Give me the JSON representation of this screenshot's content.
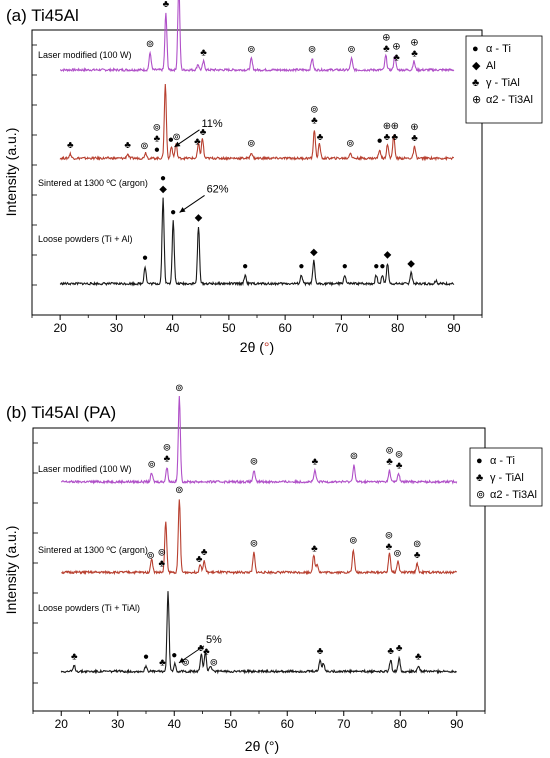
{
  "colors": {
    "laser": "#b050c8",
    "sintered": "#b84030",
    "loose": "#1a1a1a"
  },
  "chart_data": [
    {
      "type": "line",
      "title": "(a) Ti45Al",
      "xlabel": "2θ (°)",
      "ylabel": "Intensity (a.u.)",
      "xlim": [
        15,
        95
      ],
      "xticks": [
        20,
        30,
        40,
        50,
        60,
        70,
        80,
        90
      ],
      "legend": {
        "placement": "top-right",
        "entries": [
          {
            "symbol": "●",
            "label": "α - Ti"
          },
          {
            "symbol": "◆",
            "label": "Al"
          },
          {
            "symbol": "♣",
            "label": "γ - TiAl"
          },
          {
            "symbol": "⊕",
            "label": "α2 - Ti3Al"
          }
        ]
      },
      "series": [
        {
          "name": "Laser modified (100 W)",
          "color_key": "laser",
          "baseline": 0.86,
          "peaks": [
            [
              36.0,
              0.06
            ],
            [
              38.8,
              0.2
            ],
            [
              41.1,
              0.3
            ],
            [
              44.5,
              0.02
            ],
            [
              45.5,
              0.03
            ],
            [
              54.0,
              0.04
            ],
            [
              64.8,
              0.04
            ],
            [
              71.8,
              0.04
            ],
            [
              77.9,
              0.05
            ],
            [
              79.5,
              0.05
            ],
            [
              82.9,
              0.03
            ]
          ],
          "markers": [
            {
              "x": 36.0,
              "syms": [
                "⊚"
              ]
            },
            {
              "x": 38.8,
              "syms": [
                "♣",
                "⊚"
              ]
            },
            {
              "x": 41.1,
              "syms": [
                "⊚"
              ]
            },
            {
              "x": 45.5,
              "syms": [
                "♣"
              ]
            },
            {
              "x": 54.0,
              "syms": [
                "⊚"
              ]
            },
            {
              "x": 64.8,
              "syms": [
                "⊚"
              ]
            },
            {
              "x": 71.8,
              "syms": [
                "⊚"
              ]
            },
            {
              "x": 78.0,
              "syms": [
                "♣",
                "⊕"
              ]
            },
            {
              "x": 79.8,
              "syms": [
                "♣",
                "⊕"
              ]
            },
            {
              "x": 83.0,
              "syms": [
                "♣",
                "⊕"
              ]
            }
          ]
        },
        {
          "name": "Sintered at 1300 ºC (argon)",
          "color_key": "sintered",
          "baseline": 0.55,
          "peaks": [
            [
              21.8,
              0.015
            ],
            [
              32.0,
              0.015
            ],
            [
              35.2,
              0.02
            ],
            [
              38.7,
              0.26
            ],
            [
              39.8,
              0.04
            ],
            [
              40.6,
              0.05
            ],
            [
              44.6,
              0.05
            ],
            [
              45.3,
              0.07
            ],
            [
              54.0,
              0.02
            ],
            [
              65.2,
              0.1
            ],
            [
              66.1,
              0.05
            ],
            [
              71.6,
              0.02
            ],
            [
              76.8,
              0.03
            ],
            [
              78.2,
              0.05
            ],
            [
              79.3,
              0.08
            ],
            [
              83.0,
              0.04
            ]
          ],
          "markers": [
            {
              "x": 21.8,
              "syms": [
                "♣"
              ]
            },
            {
              "x": 32.0,
              "syms": [
                "♣"
              ]
            },
            {
              "x": 35.0,
              "syms": [
                "⊚"
              ]
            },
            {
              "x": 37.2,
              "syms": [
                "●",
                "♣",
                "⊚"
              ]
            },
            {
              "x": 39.7,
              "syms": [
                "●"
              ]
            },
            {
              "x": 40.7,
              "syms": [
                "⊚"
              ]
            },
            {
              "x": 44.4,
              "syms": [
                "♣"
              ]
            },
            {
              "x": 45.4,
              "syms": [
                "♣"
              ]
            },
            {
              "x": 54.0,
              "syms": [
                "⊚"
              ]
            },
            {
              "x": 65.2,
              "syms": [
                "♣",
                "⊚"
              ]
            },
            {
              "x": 66.2,
              "syms": [
                "♣"
              ]
            },
            {
              "x": 71.6,
              "syms": [
                "⊚"
              ]
            },
            {
              "x": 76.8,
              "syms": [
                "●"
              ]
            },
            {
              "x": 78.1,
              "syms": [
                "♣",
                "⊕"
              ]
            },
            {
              "x": 79.5,
              "syms": [
                "♣",
                "⊕"
              ]
            },
            {
              "x": 83.0,
              "syms": [
                "♣",
                "⊕"
              ]
            }
          ],
          "annotation": {
            "text": "11%",
            "arrow_to": [
              39.8,
              0.59
            ]
          }
        },
        {
          "name": "Loose powders (Ti + Al)",
          "color_key": "loose",
          "baseline": 0.11,
          "peaks": [
            [
              35.1,
              0.06
            ],
            [
              38.3,
              0.3
            ],
            [
              40.1,
              0.22
            ],
            [
              44.6,
              0.2
            ],
            [
              52.9,
              0.03
            ],
            [
              62.9,
              0.03
            ],
            [
              65.1,
              0.08
            ],
            [
              70.6,
              0.03
            ],
            [
              76.2,
              0.03
            ],
            [
              77.3,
              0.03
            ],
            [
              78.2,
              0.07
            ],
            [
              82.4,
              0.04
            ],
            [
              86.8,
              0.01
            ]
          ],
          "markers": [
            {
              "x": 35.1,
              "syms": [
                "●"
              ]
            },
            {
              "x": 38.3,
              "syms": [
                "◆",
                "●"
              ]
            },
            {
              "x": 40.1,
              "syms": [
                "●"
              ]
            },
            {
              "x": 44.6,
              "syms": [
                "◆"
              ]
            },
            {
              "x": 52.9,
              "syms": [
                "●"
              ]
            },
            {
              "x": 62.9,
              "syms": [
                "●"
              ]
            },
            {
              "x": 65.1,
              "syms": [
                "◆"
              ]
            },
            {
              "x": 70.6,
              "syms": [
                "●"
              ]
            },
            {
              "x": 76.2,
              "syms": [
                "●"
              ]
            },
            {
              "x": 77.3,
              "syms": [
                "●"
              ]
            },
            {
              "x": 78.2,
              "syms": [
                "◆"
              ]
            },
            {
              "x": 82.4,
              "syms": [
                "◆"
              ]
            }
          ],
          "annotation": {
            "text": "62%",
            "arrow_to": [
              40.7,
              0.36
            ]
          }
        }
      ]
    },
    {
      "type": "line",
      "title": "(b) Ti45Al (PA)",
      "xlabel": "2θ (°)",
      "ylabel": "Intensity (a.u.)",
      "xlim": [
        15,
        95
      ],
      "xticks": [
        20,
        30,
        40,
        50,
        60,
        70,
        80,
        90
      ],
      "legend": {
        "placement": "top-right",
        "entries": [
          {
            "symbol": "●",
            "label": "α - Ti"
          },
          {
            "symbol": "♣",
            "label": "γ - TiAl"
          },
          {
            "symbol": "⊚",
            "label": "α2 - Ti3Al"
          }
        ]
      },
      "series": [
        {
          "name": "Laser modified (100 W)",
          "color_key": "laser",
          "baseline": 0.81,
          "peaks": [
            [
              36.0,
              0.03
            ],
            [
              38.7,
              0.05
            ],
            [
              40.9,
              0.3
            ],
            [
              54.1,
              0.04
            ],
            [
              64.9,
              0.04
            ],
            [
              71.8,
              0.06
            ],
            [
              78.1,
              0.04
            ],
            [
              79.7,
              0.03
            ]
          ],
          "markers": [
            {
              "x": 36.0,
              "syms": [
                "⊚"
              ]
            },
            {
              "x": 38.7,
              "syms": [
                "♣",
                "⊚"
              ]
            },
            {
              "x": 40.9,
              "syms": [
                "⊚"
              ]
            },
            {
              "x": 54.1,
              "syms": [
                "⊚"
              ]
            },
            {
              "x": 64.9,
              "syms": [
                "♣"
              ]
            },
            {
              "x": 71.8,
              "syms": [
                "⊚"
              ]
            },
            {
              "x": 78.1,
              "syms": [
                "♣",
                "⊚"
              ]
            },
            {
              "x": 79.8,
              "syms": [
                "♣",
                "⊚"
              ]
            }
          ]
        },
        {
          "name": "Sintered at 1300 ºC (argon)",
          "color_key": "sintered",
          "baseline": 0.49,
          "peaks": [
            [
              36.0,
              0.05
            ],
            [
              38.5,
              0.18
            ],
            [
              40.9,
              0.26
            ],
            [
              44.6,
              0.03
            ],
            [
              45.3,
              0.04
            ],
            [
              54.1,
              0.07
            ],
            [
              64.7,
              0.06
            ],
            [
              65.3,
              0.03
            ],
            [
              71.7,
              0.08
            ],
            [
              78.1,
              0.07
            ],
            [
              79.6,
              0.04
            ],
            [
              83.0,
              0.03
            ]
          ],
          "markers": [
            {
              "x": 35.8,
              "syms": [
                "⊚"
              ]
            },
            {
              "x": 37.8,
              "syms": [
                "♣",
                "⊚"
              ]
            },
            {
              "x": 40.9,
              "syms": [
                "⊚"
              ]
            },
            {
              "x": 44.4,
              "syms": [
                "♣"
              ]
            },
            {
              "x": 45.3,
              "syms": [
                "♣"
              ]
            },
            {
              "x": 54.1,
              "syms": [
                "⊚"
              ]
            },
            {
              "x": 64.8,
              "syms": [
                "♣"
              ]
            },
            {
              "x": 71.7,
              "syms": [
                "⊚"
              ]
            },
            {
              "x": 78.0,
              "syms": [
                "♣",
                "⊚"
              ]
            },
            {
              "x": 79.5,
              "syms": [
                "⊚"
              ]
            },
            {
              "x": 83.0,
              "syms": [
                "♣",
                "⊚"
              ]
            }
          ]
        },
        {
          "name": "Loose powders (Ti + TiAl)",
          "color_key": "loose",
          "baseline": 0.14,
          "peaks": [
            [
              22.3,
              0.02
            ],
            [
              35.0,
              0.02
            ],
            [
              38.9,
              0.28
            ],
            [
              40.1,
              0.03
            ],
            [
              44.8,
              0.06
            ],
            [
              45.5,
              0.07
            ],
            [
              46.4,
              0.02
            ],
            [
              65.8,
              0.04
            ],
            [
              66.4,
              0.03
            ],
            [
              78.3,
              0.04
            ],
            [
              79.8,
              0.05
            ],
            [
              83.2,
              0.02
            ]
          ],
          "markers": [
            {
              "x": 22.3,
              "syms": [
                "♣"
              ]
            },
            {
              "x": 35.0,
              "syms": [
                "●"
              ]
            },
            {
              "x": 37.9,
              "syms": [
                "♣"
              ]
            },
            {
              "x": 40.0,
              "syms": [
                "●"
              ]
            },
            {
              "x": 42.0,
              "syms": [
                "⊚"
              ]
            },
            {
              "x": 44.7,
              "syms": [
                "♣"
              ]
            },
            {
              "x": 45.7,
              "syms": [
                "♣"
              ]
            },
            {
              "x": 47.0,
              "syms": [
                "⊚"
              ]
            },
            {
              "x": 65.8,
              "syms": [
                "♣"
              ]
            },
            {
              "x": 78.3,
              "syms": [
                "♣"
              ]
            },
            {
              "x": 79.8,
              "syms": [
                "♣"
              ]
            },
            {
              "x": 83.2,
              "syms": [
                "♣"
              ]
            }
          ],
          "annotation": {
            "text": "5%",
            "arrow_to": [
              40.3,
              0.17
            ]
          }
        }
      ]
    }
  ]
}
